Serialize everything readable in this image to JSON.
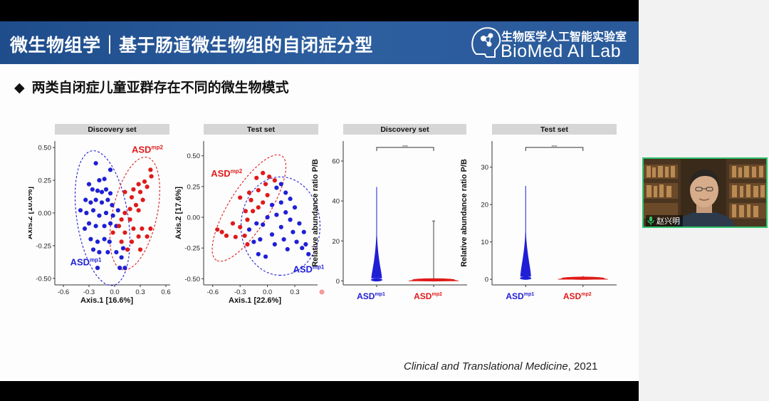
{
  "slide": {
    "title": "微生物组学｜基于肠道微生物组的自闭症分型",
    "lab_name_cn": "生物医学人工智能实验室",
    "lab_name_en": "BioMed AI Lab",
    "subtitle": "两类自闭症儿童亚群存在不同的微生物模式",
    "subtitle_bullet": "◆",
    "citation_journal": "Clinical and Translational Medicine",
    "citation_year": ", 2021"
  },
  "participant": {
    "name": "赵兴明"
  },
  "colors": {
    "mp1": "#1f1fd6",
    "mp2": "#e01a1a",
    "panel_header": "#d6d6d6"
  },
  "chart_data": [
    {
      "type": "scatter",
      "title": "Discovery set",
      "xlabel": "Axis.1   [16.6%]",
      "ylabel": "Axis.2   [10.6%]",
      "xlim": [
        -0.7,
        0.65
      ],
      "ylim": [
        -0.55,
        0.55
      ],
      "xticks": [
        -0.6,
        -0.3,
        0.0,
        0.3,
        0.6
      ],
      "yticks": [
        -0.5,
        -0.25,
        0.0,
        0.25,
        0.5
      ],
      "xtick_labels": [
        "-0.6",
        "-0.3",
        "0.0",
        "0.3",
        "0.6"
      ],
      "ytick_labels": [
        "-0.50",
        "-0.25",
        "0.00",
        "0.25",
        "0.50"
      ],
      "series": [
        {
          "name": "ASD",
          "superscript": "mp1",
          "color": "#1f1fd6",
          "points": [
            [
              -0.22,
              0.38
            ],
            [
              -0.05,
              0.33
            ],
            [
              -0.3,
              0.22
            ],
            [
              -0.18,
              0.25
            ],
            [
              -0.12,
              0.26
            ],
            [
              -0.26,
              0.18
            ],
            [
              -0.2,
              0.17
            ],
            [
              -0.15,
              0.16
            ],
            [
              -0.1,
              0.18
            ],
            [
              -0.05,
              0.15
            ],
            [
              -0.34,
              0.1
            ],
            [
              -0.28,
              0.08
            ],
            [
              -0.22,
              0.1
            ],
            [
              -0.15,
              0.08
            ],
            [
              -0.08,
              0.1
            ],
            [
              -0.03,
              0.06
            ],
            [
              -0.4,
              0.02
            ],
            [
              -0.33,
              0.0
            ],
            [
              -0.25,
              0.02
            ],
            [
              -0.18,
              -0.02
            ],
            [
              -0.1,
              0.0
            ],
            [
              -0.02,
              -0.02
            ],
            [
              0.04,
              0.02
            ],
            [
              -0.3,
              -0.08
            ],
            [
              -0.22,
              -0.1
            ],
            [
              -0.12,
              -0.1
            ],
            [
              -0.05,
              -0.08
            ],
            [
              0.02,
              -0.1
            ],
            [
              -0.28,
              -0.2
            ],
            [
              -0.2,
              -0.22
            ],
            [
              -0.12,
              -0.2
            ],
            [
              -0.06,
              -0.22
            ],
            [
              -0.25,
              -0.28
            ],
            [
              -0.18,
              -0.3
            ],
            [
              -0.08,
              -0.3
            ],
            [
              0.02,
              -0.3
            ],
            [
              0.08,
              -0.34
            ],
            [
              0.1,
              -0.27
            ],
            [
              -0.2,
              -0.42
            ],
            [
              0.06,
              -0.42
            ],
            [
              0.12,
              -0.42
            ],
            [
              -0.35,
              -0.12
            ]
          ]
        },
        {
          "name": "ASD",
          "superscript": "mp2",
          "color": "#e01a1a",
          "points": [
            [
              0.42,
              0.33
            ],
            [
              0.43,
              0.28
            ],
            [
              0.35,
              0.24
            ],
            [
              0.28,
              0.22
            ],
            [
              0.38,
              0.2
            ],
            [
              0.22,
              0.18
            ],
            [
              0.3,
              0.16
            ],
            [
              0.12,
              0.16
            ],
            [
              0.2,
              0.12
            ],
            [
              0.33,
              0.1
            ],
            [
              0.25,
              0.06
            ],
            [
              0.18,
              0.03
            ],
            [
              0.28,
              0.02
            ],
            [
              0.12,
              0.0
            ],
            [
              0.18,
              -0.05
            ],
            [
              0.08,
              -0.05
            ],
            [
              0.22,
              -0.12
            ],
            [
              0.32,
              -0.12
            ],
            [
              0.42,
              -0.12
            ],
            [
              0.12,
              -0.15
            ],
            [
              0.28,
              -0.18
            ],
            [
              0.38,
              -0.18
            ],
            [
              0.2,
              -0.22
            ],
            [
              0.08,
              -0.22
            ],
            [
              0.15,
              -0.28
            ],
            [
              0.3,
              -0.28
            ],
            [
              0.05,
              -0.1
            ],
            [
              -0.02,
              -0.15
            ]
          ]
        }
      ],
      "labels": [
        {
          "text": "ASD",
          "sup": "mp2",
          "color": "#e01a1a",
          "x": 0.2,
          "y": 0.46
        },
        {
          "text": "ASD",
          "sup": "mp1",
          "color": "#1f1fd6",
          "x": -0.52,
          "y": -0.4
        }
      ]
    },
    {
      "type": "scatter",
      "title": "Test set",
      "xlabel": "Axis.1   [22.6%]",
      "ylabel": "Axis.2   [17.6%]",
      "xlim": [
        -0.7,
        0.55
      ],
      "ylim": [
        -0.55,
        0.62
      ],
      "xticks": [
        -0.6,
        -0.3,
        0.0,
        0.3
      ],
      "yticks": [
        -0.5,
        -0.25,
        0.0,
        0.25,
        0.5
      ],
      "xtick_labels": [
        "-0.6",
        "-0.3",
        "0.0",
        "0.3"
      ],
      "ytick_labels": [
        "-0.50",
        "-0.25",
        "0.00",
        "0.25",
        "0.50"
      ],
      "series": [
        {
          "name": "ASD",
          "superscript": "mp1",
          "color": "#1f1fd6",
          "points": [
            [
              0.15,
              0.27
            ],
            [
              0.1,
              0.24
            ],
            [
              0.2,
              0.2
            ],
            [
              0.25,
              0.15
            ],
            [
              0.15,
              0.12
            ],
            [
              0.05,
              0.1
            ],
            [
              0.3,
              0.08
            ],
            [
              0.2,
              0.04
            ],
            [
              0.1,
              0.02
            ],
            [
              0.0,
              0.0
            ],
            [
              0.25,
              -0.02
            ],
            [
              0.35,
              -0.05
            ],
            [
              -0.05,
              -0.06
            ],
            [
              0.15,
              -0.08
            ],
            [
              0.28,
              -0.12
            ],
            [
              0.4,
              -0.12
            ],
            [
              -0.12,
              -0.05
            ],
            [
              0.05,
              -0.14
            ],
            [
              0.18,
              -0.18
            ],
            [
              0.32,
              -0.2
            ],
            [
              0.42,
              -0.22
            ],
            [
              -0.2,
              -0.1
            ],
            [
              -0.15,
              -0.2
            ],
            [
              -0.08,
              -0.18
            ],
            [
              0.08,
              -0.22
            ],
            [
              0.22,
              -0.26
            ],
            [
              -0.1,
              -0.3
            ],
            [
              0.45,
              -0.3
            ],
            [
              0.38,
              -0.25
            ],
            [
              -0.02,
              -0.32
            ]
          ]
        },
        {
          "name": "ASD",
          "superscript": "mp2",
          "color": "#e01a1a",
          "points": [
            [
              -0.05,
              0.36
            ],
            [
              0.02,
              0.33
            ],
            [
              -0.12,
              0.32
            ],
            [
              0.08,
              0.3
            ],
            [
              -0.02,
              0.27
            ],
            [
              -0.1,
              0.22
            ],
            [
              0.0,
              0.18
            ],
            [
              -0.2,
              0.2
            ],
            [
              -0.3,
              0.16
            ],
            [
              -0.18,
              0.14
            ],
            [
              -0.05,
              0.12
            ],
            [
              -0.24,
              0.05
            ],
            [
              -0.16,
              0.05
            ],
            [
              -0.22,
              -0.02
            ],
            [
              -0.38,
              -0.05
            ],
            [
              -0.3,
              -0.08
            ],
            [
              -0.5,
              -0.12
            ],
            [
              -0.45,
              -0.15
            ],
            [
              -0.25,
              -0.15
            ],
            [
              -0.35,
              -0.16
            ],
            [
              -0.22,
              -0.22
            ],
            [
              -0.55,
              -0.1
            ],
            [
              -0.1,
              0.08
            ]
          ]
        }
      ],
      "labels": [
        {
          "text": "ASD",
          "sup": "mp2",
          "color": "#e01a1a",
          "x": -0.62,
          "y": 0.33
        },
        {
          "text": "ASD",
          "sup": "mp1",
          "color": "#1f1fd6",
          "x": 0.28,
          "y": -0.45
        }
      ]
    },
    {
      "type": "violin",
      "title": "Discovery set",
      "ylabel": "Relative abundance ratio P/B",
      "ylim": [
        -2,
        70
      ],
      "yticks": [
        0,
        20,
        40,
        60
      ],
      "ytick_labels": [
        "0",
        "20",
        "40",
        "60"
      ],
      "significance": "****",
      "groups": [
        {
          "name": "ASD",
          "superscript": "mp1",
          "color": "#1f1fd6",
          "min": 0,
          "max": 47,
          "median": 3
        },
        {
          "name": "ASD",
          "superscript": "mp2",
          "color": "#e01a1a",
          "min": 0,
          "max": 30,
          "median": 0.5
        }
      ]
    },
    {
      "type": "violin",
      "title": "Test set",
      "ylabel": "Relative abundance ratio P/B",
      "ylim": [
        -1.5,
        37
      ],
      "yticks": [
        0,
        10,
        20,
        30
      ],
      "ytick_labels": [
        "0",
        "10",
        "20",
        "30"
      ],
      "significance": "****",
      "groups": [
        {
          "name": "ASD",
          "superscript": "mp1",
          "color": "#1f1fd6",
          "min": 0,
          "max": 25,
          "median": 2
        },
        {
          "name": "ASD",
          "superscript": "mp2",
          "color": "#e01a1a",
          "min": 0,
          "max": 0.9,
          "median": 0.3
        }
      ]
    }
  ]
}
